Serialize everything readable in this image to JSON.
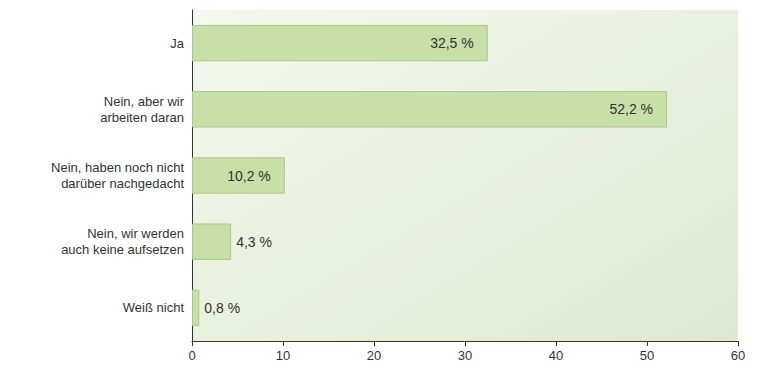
{
  "chart_data": {
    "type": "bar",
    "orientation": "horizontal",
    "categories": [
      "Ja",
      "Nein, aber wir\narbeiten daran",
      "Nein, haben noch nicht\ndarüber nachgedacht",
      "Nein, wir werden\nauch keine aufsetzen",
      "Weiß nicht"
    ],
    "values": [
      32.5,
      52.2,
      10.2,
      4.3,
      0.8
    ],
    "value_labels": [
      "32,5 %",
      "52,2 %",
      "10,2 %",
      "4,3 %",
      "0,8 %"
    ],
    "color": "#c6e0a8",
    "xlim": [
      0,
      60
    ],
    "xticks": [
      0,
      10,
      20,
      30,
      40,
      50,
      60
    ],
    "grid": false,
    "data_labels": true
  }
}
